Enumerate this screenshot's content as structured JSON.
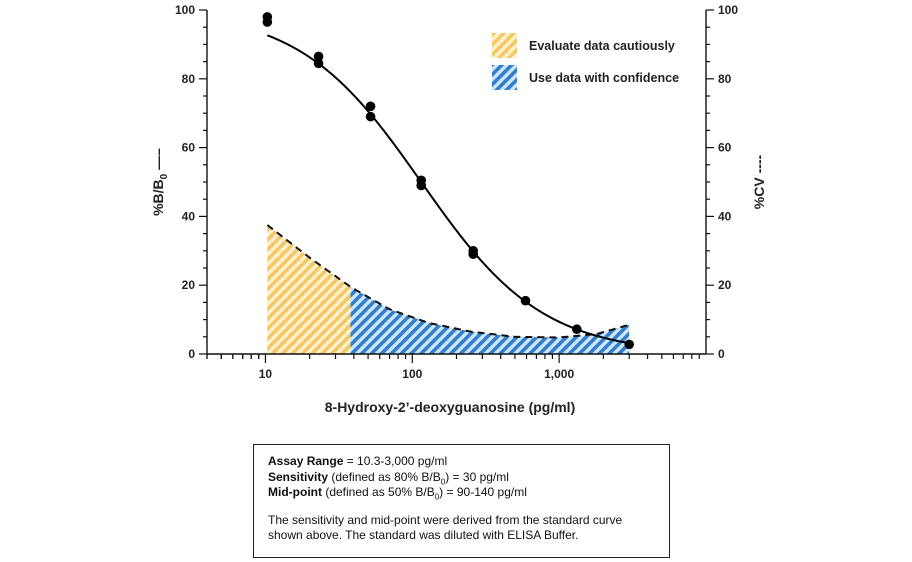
{
  "colors": {
    "yellow_hatch": "#f5c763",
    "blue_hatch": "#2f7fcf",
    "curve": "#000000"
  },
  "chart_data": {
    "type": "line",
    "xscale": "log",
    "xlabel": "8-Hydroxy-2’-deoxyguanosine (pg/ml)",
    "ylabel_left": "%B/B",
    "ylabel_left_sub": "0",
    "ylabel_left_suffix": " —–",
    "ylabel_right": "%CV ----",
    "xlim": [
      4,
      10000
    ],
    "ylim": [
      0,
      100
    ],
    "x_tick_labels": [
      {
        "value": 10,
        "label": "10"
      },
      {
        "value": 100,
        "label": "100"
      },
      {
        "value": 1000,
        "label": "1,000"
      }
    ],
    "y_ticks": [
      0,
      20,
      40,
      60,
      80,
      100
    ],
    "series": [
      {
        "name": "%B/B0 standard curve",
        "style": "solid",
        "points": [
          {
            "x": 10.3,
            "y": 98
          },
          {
            "x": 10.3,
            "y": 96.5
          },
          {
            "x": 23,
            "y": 86.5
          },
          {
            "x": 23,
            "y": 84.5
          },
          {
            "x": 52,
            "y": 72
          },
          {
            "x": 52,
            "y": 69
          },
          {
            "x": 115,
            "y": 50.5
          },
          {
            "x": 115,
            "y": 49
          },
          {
            "x": 260,
            "y": 30
          },
          {
            "x": 260,
            "y": 29
          },
          {
            "x": 590,
            "y": 15.5
          },
          {
            "x": 1320,
            "y": 7.2
          },
          {
            "x": 3000,
            "y": 2.8
          }
        ],
        "fit": {
          "top": 100,
          "bottom": 0,
          "ec50": 115,
          "slope": 1.05
        }
      },
      {
        "name": "%CV",
        "style": "dashed",
        "points": [
          {
            "x": 10.3,
            "y": 37.5
          },
          {
            "x": 20,
            "y": 28
          },
          {
            "x": 38,
            "y": 19.5
          },
          {
            "x": 70,
            "y": 13
          },
          {
            "x": 130,
            "y": 9
          },
          {
            "x": 250,
            "y": 6.5
          },
          {
            "x": 500,
            "y": 5
          },
          {
            "x": 1000,
            "y": 4.8
          },
          {
            "x": 1800,
            "y": 5.8
          },
          {
            "x": 3000,
            "y": 8.5
          }
        ]
      }
    ],
    "regions": [
      {
        "name": "Evaluate data cautiously",
        "from": 10.3,
        "to": 38,
        "color": "#f5c763"
      },
      {
        "name": "Use data with confidence",
        "from": 38,
        "to": 3000,
        "color": "#2f7fcf"
      }
    ],
    "legend": {
      "position": "top-right",
      "entries": [
        "Evaluate data cautiously",
        "Use data with confidence"
      ]
    }
  },
  "info_box": {
    "assay_range_label": "Assay Range",
    "assay_range_value": " = 10.3-3,000 pg/ml",
    "sensitivity_label": "Sensitivity",
    "sensitivity_pre": " (defined as 80% B/B",
    "sensitivity_sub": "0",
    "sensitivity_post": ") = 30 pg/ml",
    "midpoint_label": "Mid-point",
    "midpoint_pre": " (defined as 50% B/B",
    "midpoint_sub": "0",
    "midpoint_post": ") = 90-140 pg/ml",
    "note_line1": "The sensitivity and mid-point were derived from the standard curve",
    "note_line2": "shown above. The standard was diluted with ELISA Buffer."
  }
}
